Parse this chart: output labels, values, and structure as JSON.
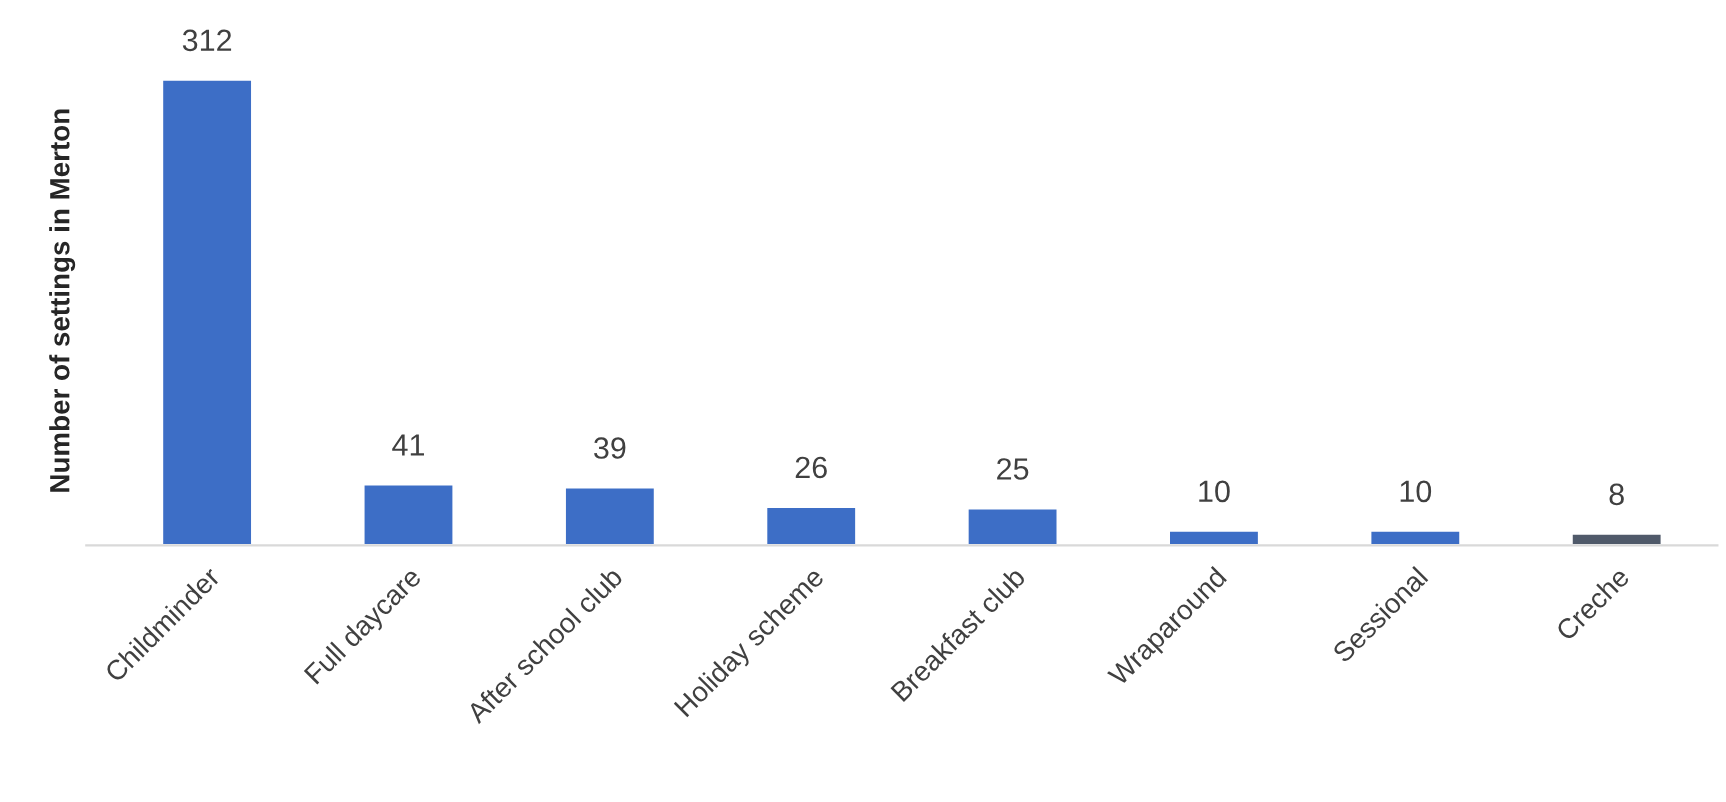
{
  "chart_data": {
    "type": "bar",
    "ylabel": "Number of settings in Merton",
    "categories": [
      "Childminder",
      "Full daycare",
      "After school club",
      "Holiday scheme",
      "Breakfast club",
      "Wraparound",
      "Sessional",
      "Creche"
    ],
    "values": [
      312,
      41,
      39,
      26,
      25,
      10,
      10,
      8
    ],
    "colors": [
      "#3d6ec6",
      "#3d6ec6",
      "#3d6ec6",
      "#3d6ec6",
      "#3d6ec6",
      "#3d6ec6",
      "#3d6ec6",
      "#505a6a"
    ],
    "data_labels": true,
    "grid": false,
    "legend": false
  }
}
